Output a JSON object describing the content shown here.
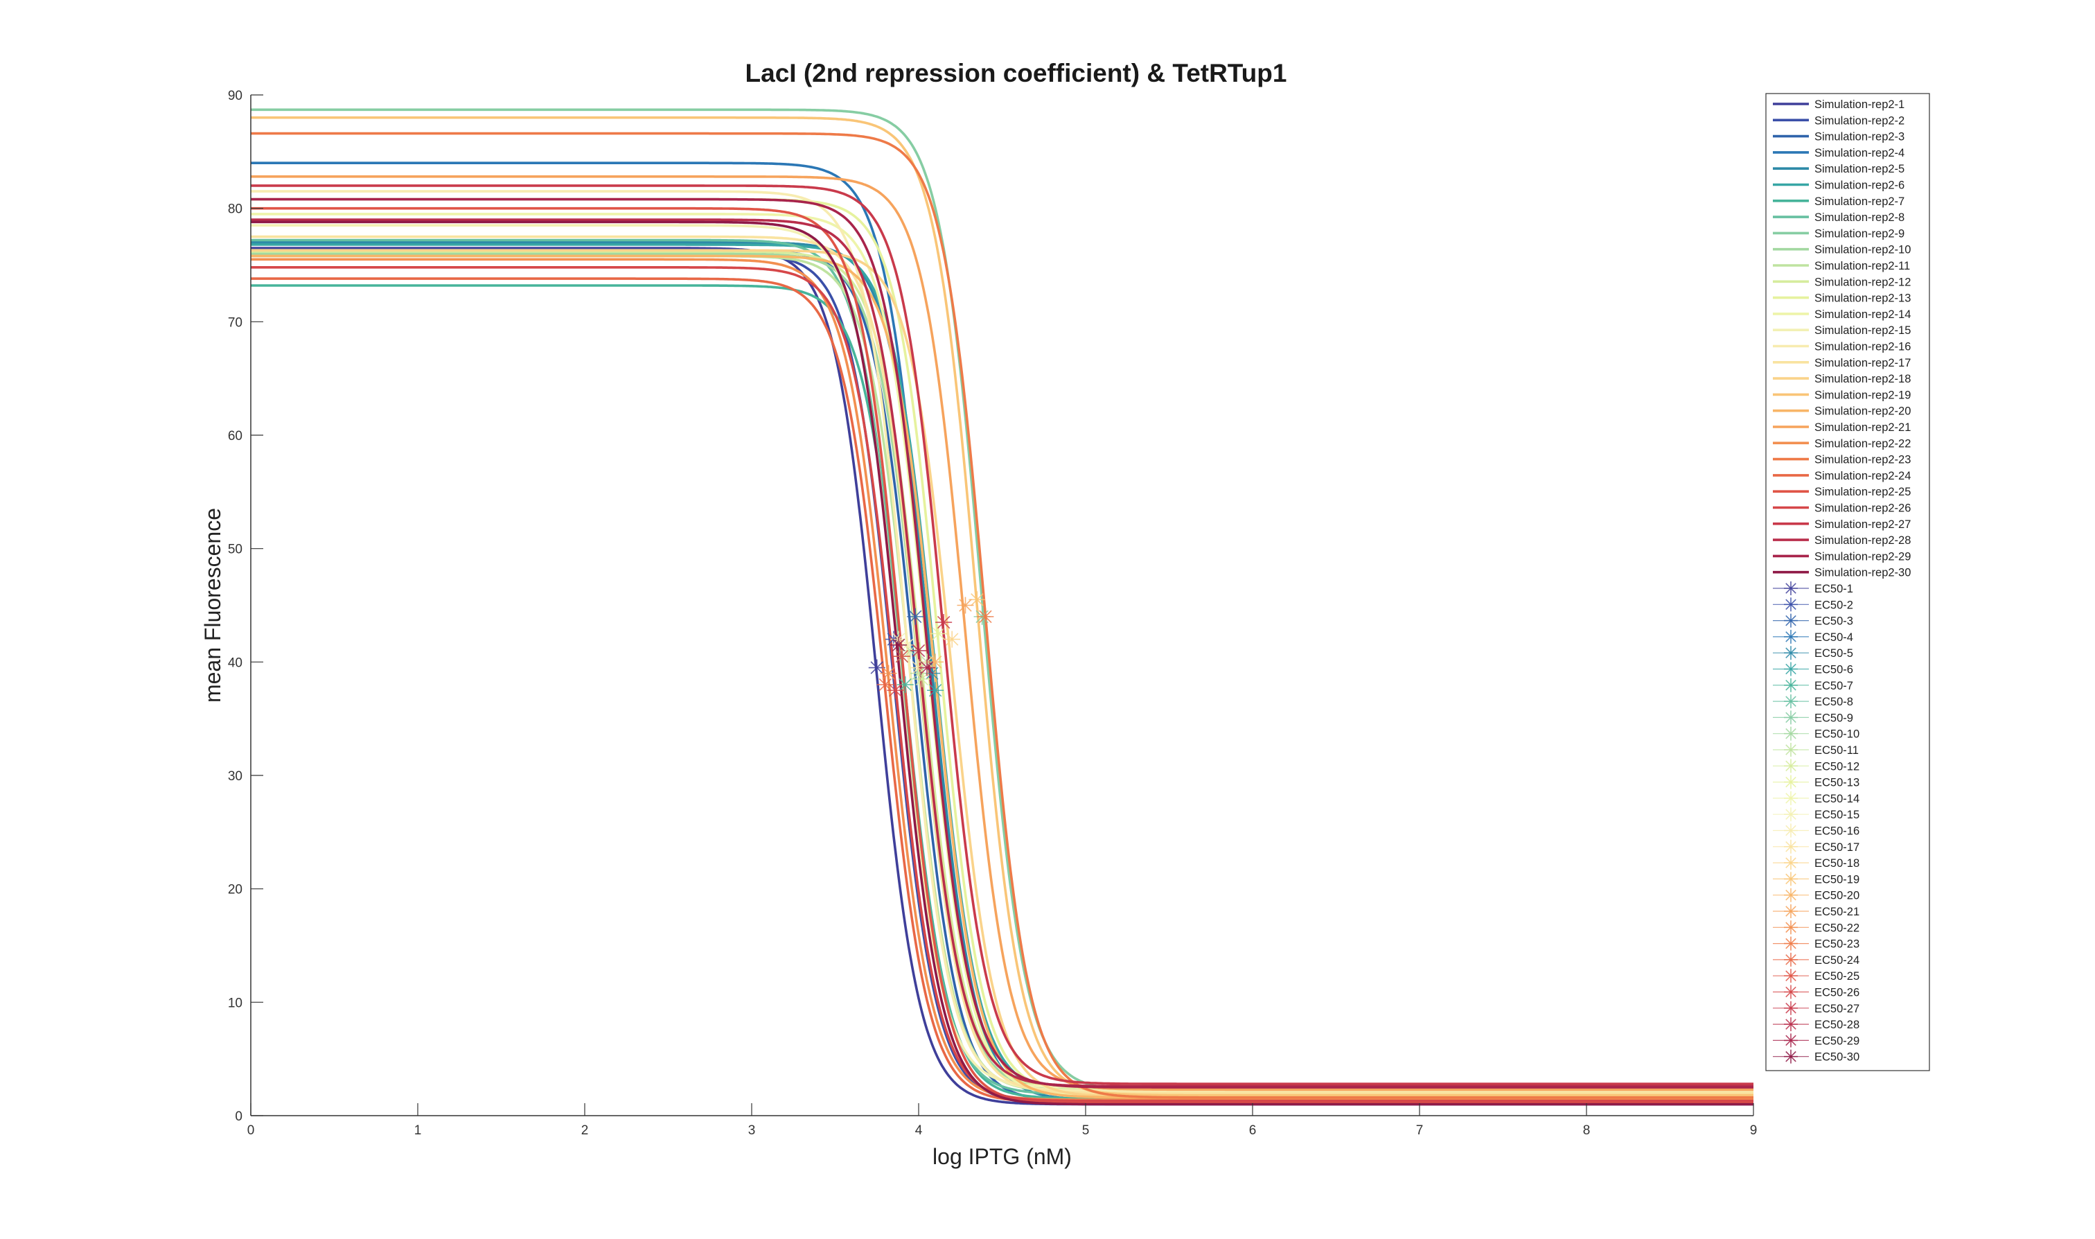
{
  "chart_data": {
    "type": "line",
    "title": "LacI (2nd repression coefficient) & TetRTup1",
    "xlabel": "log IPTG (nM)",
    "ylabel": "mean Fluorescence",
    "xlim": [
      0,
      9
    ],
    "ylim": [
      0,
      90
    ],
    "xticks": [
      "0",
      "1",
      "2",
      "3",
      "4",
      "5",
      "6",
      "7",
      "8",
      "9"
    ],
    "yticks": [
      "0",
      "10",
      "20",
      "30",
      "40",
      "50",
      "60",
      "70",
      "80",
      "90"
    ],
    "grid": false,
    "legend_position": "right",
    "colors": [
      "#3f3f9a",
      "#3a4fa8",
      "#2f63ab",
      "#2b77b5",
      "#2e8aa8",
      "#37a6a5",
      "#46b49a",
      "#66c0a1",
      "#86cda3",
      "#a3d8a1",
      "#bfe3a0",
      "#d6ec9e",
      "#e6f29e",
      "#eef4aa",
      "#f3f1b4",
      "#f7ecb0",
      "#f9e3a0",
      "#fad38a",
      "#f9c577",
      "#f8b567",
      "#f6a35c",
      "#f28f50",
      "#ee7a48",
      "#e86846",
      "#e05547",
      "#d64749",
      "#c93a4b",
      "#b92e4b",
      "#a8244b",
      "#8f1a47"
    ],
    "series": [
      {
        "name": "Simulation-rep2-1",
        "top": 76.5,
        "bottom": 1.0,
        "ec50": 3.75,
        "ec50_y": 39.5
      },
      {
        "name": "Simulation-rep2-2",
        "top": 76.0,
        "bottom": 1.2,
        "ec50": 3.85,
        "ec50_y": 42.0
      },
      {
        "name": "Simulation-rep2-3",
        "top": 76.3,
        "bottom": 1.3,
        "ec50": 3.98,
        "ec50_y": 44.0
      },
      {
        "name": "Simulation-rep2-4",
        "top": 84.0,
        "bottom": 1.8,
        "ec50": 4.05,
        "ec50_y": 40.0
      },
      {
        "name": "Simulation-rep2-5",
        "top": 77.0,
        "bottom": 1.4,
        "ec50": 4.08,
        "ec50_y": 39.0
      },
      {
        "name": "Simulation-rep2-6",
        "top": 76.8,
        "bottom": 2.0,
        "ec50": 4.1,
        "ec50_y": 37.5
      },
      {
        "name": "Simulation-rep2-7",
        "top": 73.2,
        "bottom": 1.5,
        "ec50": 3.92,
        "ec50_y": 38.0
      },
      {
        "name": "Simulation-rep2-8",
        "top": 77.2,
        "bottom": 1.9,
        "ec50": 3.9,
        "ec50_y": 40.5
      },
      {
        "name": "Simulation-rep2-9",
        "top": 88.7,
        "bottom": 2.2,
        "ec50": 4.38,
        "ec50_y": 44.0
      },
      {
        "name": "Simulation-rep2-10",
        "top": 76.0,
        "bottom": 2.3,
        "ec50": 4.0,
        "ec50_y": 39.0
      },
      {
        "name": "Simulation-rep2-11",
        "top": 75.8,
        "bottom": 2.1,
        "ec50": 3.95,
        "ec50_y": 41.0
      },
      {
        "name": "Simulation-rep2-12",
        "top": 76.2,
        "bottom": 2.4,
        "ec50": 4.02,
        "ec50_y": 38.5
      },
      {
        "name": "Simulation-rep2-13",
        "top": 80.8,
        "bottom": 2.0,
        "ec50": 4.12,
        "ec50_y": 42.5
      },
      {
        "name": "Simulation-rep2-14",
        "top": 79.5,
        "bottom": 1.8,
        "ec50": 4.05,
        "ec50_y": 40.0
      },
      {
        "name": "Simulation-rep2-15",
        "top": 78.5,
        "bottom": 2.5,
        "ec50": 3.88,
        "ec50_y": 42.0
      },
      {
        "name": "Simulation-rep2-16",
        "top": 81.5,
        "bottom": 2.2,
        "ec50": 3.93,
        "ec50_y": 41.5
      },
      {
        "name": "Simulation-rep2-17",
        "top": 77.5,
        "bottom": 2.0,
        "ec50": 4.0,
        "ec50_y": 39.5
      },
      {
        "name": "Simulation-rep2-18",
        "top": 76.3,
        "bottom": 1.7,
        "ec50": 4.2,
        "ec50_y": 42.0
      },
      {
        "name": "Simulation-rep2-19",
        "top": 88.0,
        "bottom": 1.8,
        "ec50": 4.35,
        "ec50_y": 45.5
      },
      {
        "name": "Simulation-rep2-20",
        "top": 75.8,
        "bottom": 1.6,
        "ec50": 4.1,
        "ec50_y": 40.0
      },
      {
        "name": "Simulation-rep2-21",
        "top": 82.8,
        "bottom": 2.3,
        "ec50": 4.28,
        "ec50_y": 45.0
      },
      {
        "name": "Simulation-rep2-22",
        "top": 75.5,
        "bottom": 1.4,
        "ec50": 3.82,
        "ec50_y": 39.0
      },
      {
        "name": "Simulation-rep2-23",
        "top": 86.6,
        "bottom": 1.6,
        "ec50": 4.4,
        "ec50_y": 44.0
      },
      {
        "name": "Simulation-rep2-24",
        "top": 73.8,
        "bottom": 1.2,
        "ec50": 3.8,
        "ec50_y": 38.0
      },
      {
        "name": "Simulation-rep2-25",
        "top": 80.0,
        "bottom": 1.1,
        "ec50": 3.9,
        "ec50_y": 40.5
      },
      {
        "name": "Simulation-rep2-26",
        "top": 74.8,
        "bottom": 1.3,
        "ec50": 3.86,
        "ec50_y": 37.5
      },
      {
        "name": "Simulation-rep2-27",
        "top": 82.0,
        "bottom": 2.8,
        "ec50": 4.15,
        "ec50_y": 43.5
      },
      {
        "name": "Simulation-rep2-28",
        "top": 79.0,
        "bottom": 2.6,
        "ec50": 4.0,
        "ec50_y": 41.0
      },
      {
        "name": "Simulation-rep2-29",
        "top": 80.8,
        "bottom": 2.5,
        "ec50": 4.05,
        "ec50_y": 39.5
      },
      {
        "name": "Simulation-rep2-30",
        "top": 78.8,
        "bottom": 1.0,
        "ec50": 3.88,
        "ec50_y": 41.5
      }
    ],
    "ec50_labels": [
      "EC50-1",
      "EC50-2",
      "EC50-3",
      "EC50-4",
      "EC50-5",
      "EC50-6",
      "EC50-7",
      "EC50-8",
      "EC50-9",
      "EC50-10",
      "EC50-11",
      "EC50-12",
      "EC50-13",
      "EC50-14",
      "EC50-15",
      "EC50-16",
      "EC50-17",
      "EC50-18",
      "EC50-19",
      "EC50-20",
      "EC50-21",
      "EC50-22",
      "EC50-23",
      "EC50-24",
      "EC50-25",
      "EC50-26",
      "EC50-27",
      "EC50-28",
      "EC50-29",
      "EC50-30"
    ]
  }
}
